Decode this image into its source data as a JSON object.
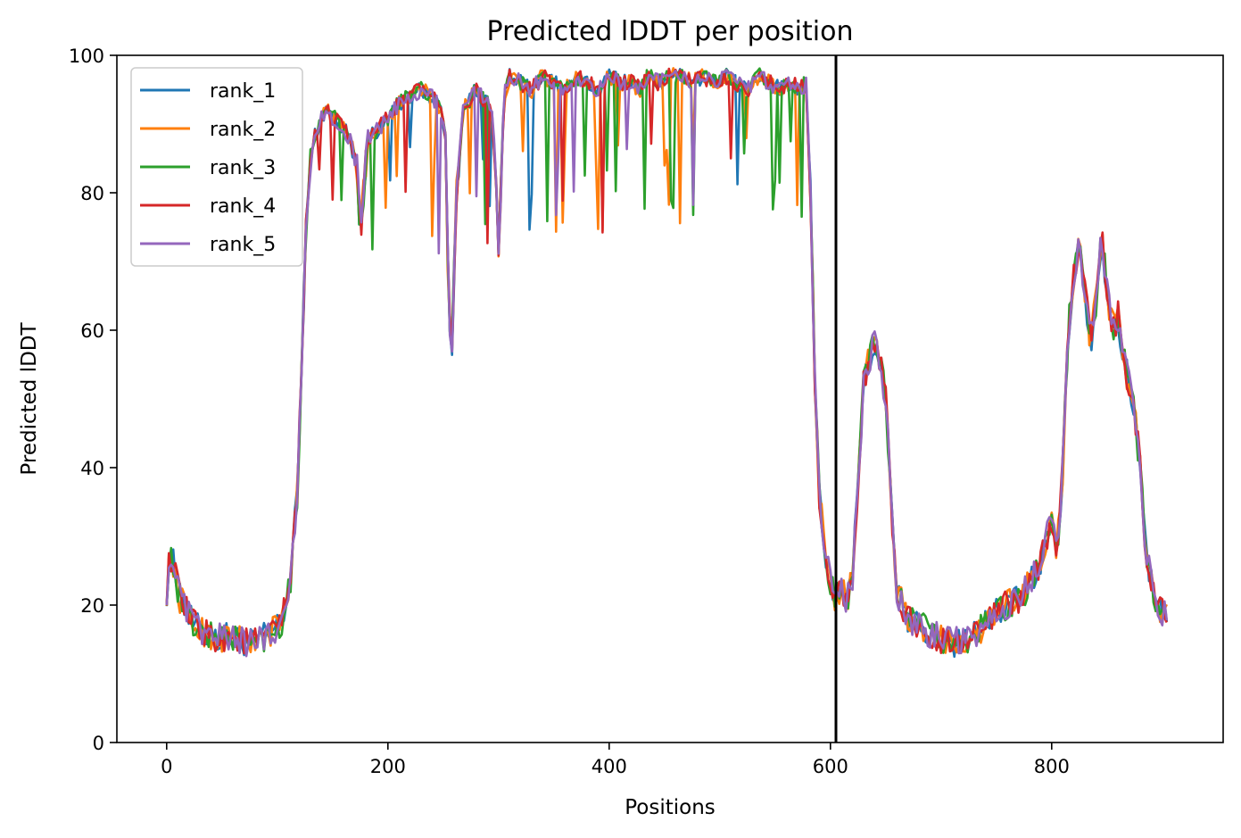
{
  "chart_data": {
    "type": "line",
    "title": "Predicted lDDT per position",
    "xlabel": "Positions",
    "ylabel": "Predicted lDDT",
    "xlim": [
      -45,
      955
    ],
    "ylim": [
      0,
      100
    ],
    "xticks": [
      0,
      200,
      400,
      600,
      800
    ],
    "yticks": [
      0,
      20,
      40,
      60,
      80,
      100
    ],
    "vline_x": 605,
    "legend_loc": "upper left",
    "grid": false,
    "colors": [
      "#1f77b4",
      "#ff7f0e",
      "#2ca02c",
      "#d62728",
      "#9467bd"
    ],
    "base": {
      "x": [
        0,
        2,
        5,
        8,
        12,
        18,
        25,
        35,
        45,
        55,
        65,
        75,
        85,
        95,
        105,
        112,
        118,
        122,
        126,
        130,
        135,
        140,
        145,
        150,
        158,
        165,
        172,
        175,
        178,
        182,
        190,
        200,
        210,
        220,
        230,
        240,
        248,
        252,
        255,
        258,
        262,
        268,
        280,
        290,
        295,
        300,
        305,
        310,
        320,
        330,
        340,
        350,
        360,
        370,
        380,
        390,
        400,
        410,
        420,
        428,
        435,
        445,
        455,
        465,
        475,
        485,
        495,
        505,
        515,
        525,
        535,
        545,
        555,
        565,
        572,
        578,
        582,
        586,
        590,
        595,
        600,
        605,
        610,
        615,
        620,
        625,
        630,
        635,
        640,
        645,
        650,
        655,
        660,
        670,
        680,
        690,
        700,
        710,
        720,
        730,
        740,
        750,
        760,
        770,
        780,
        790,
        795,
        800,
        805,
        810,
        815,
        820,
        825,
        830,
        835,
        840,
        845,
        850,
        855,
        860,
        865,
        870,
        875,
        880,
        885,
        890,
        895,
        900,
        905
      ],
      "y": [
        22,
        26,
        27,
        24,
        21,
        19,
        17,
        16,
        15,
        15.5,
        15,
        14.5,
        15,
        16,
        18,
        24,
        36,
        55,
        75,
        85,
        89,
        91,
        92,
        91,
        90,
        88,
        84,
        74,
        80,
        88,
        89,
        91,
        93,
        94,
        95,
        94,
        92,
        88,
        62,
        58,
        80,
        92,
        95,
        93,
        91,
        72,
        94,
        97,
        96,
        95,
        97,
        96,
        95,
        97,
        96,
        95,
        97,
        96,
        96,
        95,
        97,
        96,
        97,
        97,
        96,
        97,
        96,
        97,
        96,
        95,
        97,
        96,
        95,
        96,
        95,
        96,
        80,
        52,
        36,
        28,
        23,
        21,
        22,
        21,
        24,
        38,
        52,
        56,
        58,
        55,
        50,
        34,
        22,
        18,
        17,
        16,
        15,
        14.5,
        15,
        15.5,
        17,
        19,
        20,
        21,
        23,
        26,
        30,
        32,
        28,
        40,
        60,
        68,
        72,
        66,
        58,
        64,
        74,
        66,
        60,
        62,
        56,
        52,
        48,
        40,
        28,
        24,
        20,
        19,
        18
      ]
    },
    "series": [
      {
        "name": "rank_1"
      },
      {
        "name": "rank_2"
      },
      {
        "name": "rank_3"
      },
      {
        "name": "rank_4"
      },
      {
        "name": "rank_5"
      }
    ]
  }
}
